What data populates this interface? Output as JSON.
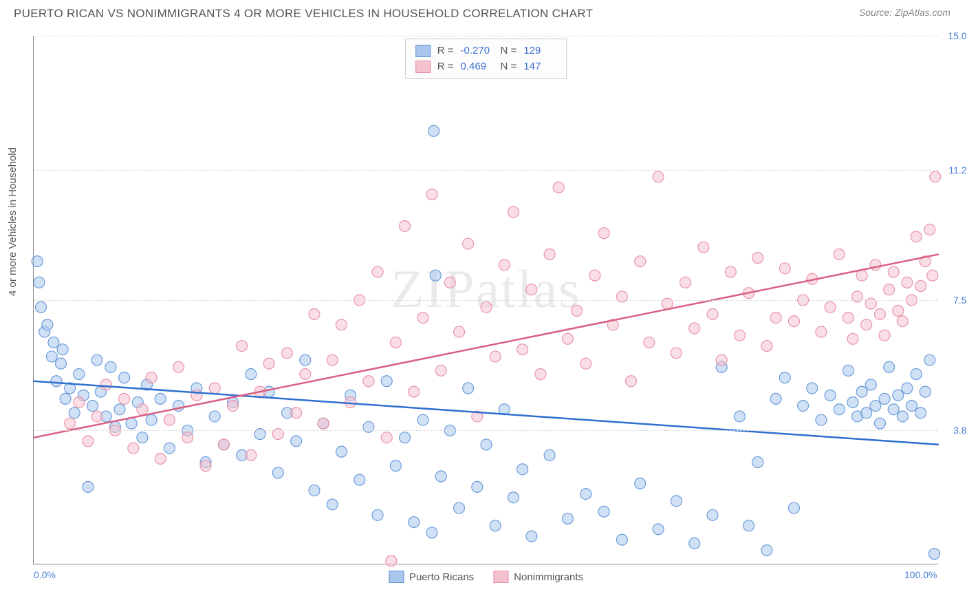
{
  "title": "PUERTO RICAN VS NONIMMIGRANTS 4 OR MORE VEHICLES IN HOUSEHOLD CORRELATION CHART",
  "source": "Source: ZipAtlas.com",
  "watermark": "ZIPatlas",
  "ylabel": "4 or more Vehicles in Household",
  "chart": {
    "type": "scatter",
    "xlim": [
      0,
      100
    ],
    "ylim": [
      0,
      15
    ],
    "xticks": [
      {
        "pos": 0,
        "label": "0.0%"
      },
      {
        "pos": 100,
        "label": "100.0%"
      }
    ],
    "yticks": [
      {
        "pos": 3.8,
        "label": "3.8%"
      },
      {
        "pos": 7.5,
        "label": "7.5%"
      },
      {
        "pos": 11.2,
        "label": "11.2%"
      },
      {
        "pos": 15.0,
        "label": "15.0%"
      }
    ],
    "grid_color": "#dddddd",
    "background_color": "#ffffff",
    "axis_color": "#888888",
    "marker_radius": 8,
    "marker_opacity": 0.55,
    "marker_stroke_opacity": 0.9,
    "line_width": 2.5,
    "series": [
      {
        "name": "Puerto Ricans",
        "color_fill": "#a9c6ec",
        "color_stroke": "#5e93d6",
        "line_color": "#2e6fd0",
        "R": "-0.270",
        "N": "129",
        "trend": {
          "x1": 0,
          "y1": 5.2,
          "x2": 100,
          "y2": 3.4
        },
        "points": [
          [
            0.4,
            8.6
          ],
          [
            0.6,
            8.0
          ],
          [
            0.8,
            7.3
          ],
          [
            1.2,
            6.6
          ],
          [
            1.5,
            6.8
          ],
          [
            2.0,
            5.9
          ],
          [
            2.2,
            6.3
          ],
          [
            2.5,
            5.2
          ],
          [
            3.0,
            5.7
          ],
          [
            3.2,
            6.1
          ],
          [
            3.5,
            4.7
          ],
          [
            4.0,
            5.0
          ],
          [
            4.5,
            4.3
          ],
          [
            5.0,
            5.4
          ],
          [
            5.5,
            4.8
          ],
          [
            6.0,
            2.2
          ],
          [
            6.5,
            4.5
          ],
          [
            7.0,
            5.8
          ],
          [
            7.4,
            4.9
          ],
          [
            8.0,
            4.2
          ],
          [
            8.5,
            5.6
          ],
          [
            9.0,
            3.9
          ],
          [
            9.5,
            4.4
          ],
          [
            10.0,
            5.3
          ],
          [
            10.8,
            4.0
          ],
          [
            11.5,
            4.6
          ],
          [
            12.0,
            3.6
          ],
          [
            12.5,
            5.1
          ],
          [
            13.0,
            4.1
          ],
          [
            14.0,
            4.7
          ],
          [
            15.0,
            3.3
          ],
          [
            16.0,
            4.5
          ],
          [
            17.0,
            3.8
          ],
          [
            18.0,
            5.0
          ],
          [
            19.0,
            2.9
          ],
          [
            20.0,
            4.2
          ],
          [
            21.0,
            3.4
          ],
          [
            22.0,
            4.6
          ],
          [
            23.0,
            3.1
          ],
          [
            24.0,
            5.4
          ],
          [
            25.0,
            3.7
          ],
          [
            26.0,
            4.9
          ],
          [
            27.0,
            2.6
          ],
          [
            28.0,
            4.3
          ],
          [
            29.0,
            3.5
          ],
          [
            30.0,
            5.8
          ],
          [
            31.0,
            2.1
          ],
          [
            32.0,
            4.0
          ],
          [
            33.0,
            1.7
          ],
          [
            34.0,
            3.2
          ],
          [
            35.0,
            4.8
          ],
          [
            36.0,
            2.4
          ],
          [
            37.0,
            3.9
          ],
          [
            38.0,
            1.4
          ],
          [
            39.0,
            5.2
          ],
          [
            40.0,
            2.8
          ],
          [
            41.0,
            3.6
          ],
          [
            42.0,
            1.2
          ],
          [
            43.0,
            4.1
          ],
          [
            44.0,
            0.9
          ],
          [
            44.2,
            12.3
          ],
          [
            44.4,
            8.2
          ],
          [
            45.0,
            2.5
          ],
          [
            46.0,
            3.8
          ],
          [
            47.0,
            1.6
          ],
          [
            48.0,
            5.0
          ],
          [
            49.0,
            2.2
          ],
          [
            50.0,
            3.4
          ],
          [
            51.0,
            1.1
          ],
          [
            52.0,
            4.4
          ],
          [
            53.0,
            1.9
          ],
          [
            54.0,
            2.7
          ],
          [
            55.0,
            0.8
          ],
          [
            57.0,
            3.1
          ],
          [
            59.0,
            1.3
          ],
          [
            61.0,
            2.0
          ],
          [
            63.0,
            1.5
          ],
          [
            65.0,
            0.7
          ],
          [
            67.0,
            2.3
          ],
          [
            69.0,
            1.0
          ],
          [
            71.0,
            1.8
          ],
          [
            73.0,
            0.6
          ],
          [
            75.0,
            1.4
          ],
          [
            76.0,
            5.6
          ],
          [
            78.0,
            4.2
          ],
          [
            79.0,
            1.1
          ],
          [
            80.0,
            2.9
          ],
          [
            81.0,
            0.4
          ],
          [
            82.0,
            4.7
          ],
          [
            83.0,
            5.3
          ],
          [
            84.0,
            1.6
          ],
          [
            85.0,
            4.5
          ],
          [
            86.0,
            5.0
          ],
          [
            87.0,
            4.1
          ],
          [
            88.0,
            4.8
          ],
          [
            89.0,
            4.4
          ],
          [
            90.0,
            5.5
          ],
          [
            90.5,
            4.6
          ],
          [
            91.0,
            4.2
          ],
          [
            91.5,
            4.9
          ],
          [
            92.0,
            4.3
          ],
          [
            92.5,
            5.1
          ],
          [
            93.0,
            4.5
          ],
          [
            93.5,
            4.0
          ],
          [
            94.0,
            4.7
          ],
          [
            94.5,
            5.6
          ],
          [
            95.0,
            4.4
          ],
          [
            95.5,
            4.8
          ],
          [
            96.0,
            4.2
          ],
          [
            96.5,
            5.0
          ],
          [
            97.0,
            4.5
          ],
          [
            97.5,
            5.4
          ],
          [
            98.0,
            4.3
          ],
          [
            98.5,
            4.9
          ],
          [
            99.0,
            5.8
          ],
          [
            99.5,
            0.3
          ]
        ]
      },
      {
        "name": "Nonimmigrants",
        "color_fill": "#f4c2cf",
        "color_stroke": "#e88ba4",
        "line_color": "#d95f82",
        "R": "0.469",
        "N": "147",
        "trend": {
          "x1": 0,
          "y1": 3.6,
          "x2": 100,
          "y2": 8.8
        },
        "points": [
          [
            4.0,
            4.0
          ],
          [
            5.0,
            4.6
          ],
          [
            6.0,
            3.5
          ],
          [
            7.0,
            4.2
          ],
          [
            8.0,
            5.1
          ],
          [
            9.0,
            3.8
          ],
          [
            10.0,
            4.7
          ],
          [
            11.0,
            3.3
          ],
          [
            12.0,
            4.4
          ],
          [
            13.0,
            5.3
          ],
          [
            14.0,
            3.0
          ],
          [
            15.0,
            4.1
          ],
          [
            16.0,
            5.6
          ],
          [
            17.0,
            3.6
          ],
          [
            18.0,
            4.8
          ],
          [
            19.0,
            2.8
          ],
          [
            20.0,
            5.0
          ],
          [
            21.0,
            3.4
          ],
          [
            22.0,
            4.5
          ],
          [
            23.0,
            6.2
          ],
          [
            24.0,
            3.1
          ],
          [
            25.0,
            4.9
          ],
          [
            26.0,
            5.7
          ],
          [
            27.0,
            3.7
          ],
          [
            28.0,
            6.0
          ],
          [
            29.0,
            4.3
          ],
          [
            30.0,
            5.4
          ],
          [
            31.0,
            7.1
          ],
          [
            32.0,
            4.0
          ],
          [
            33.0,
            5.8
          ],
          [
            34.0,
            6.8
          ],
          [
            35.0,
            4.6
          ],
          [
            36.0,
            7.5
          ],
          [
            37.0,
            5.2
          ],
          [
            38.0,
            8.3
          ],
          [
            39.0,
            3.6
          ],
          [
            39.5,
            0.1
          ],
          [
            40.0,
            6.3
          ],
          [
            41.0,
            9.6
          ],
          [
            42.0,
            4.9
          ],
          [
            43.0,
            7.0
          ],
          [
            44.0,
            10.5
          ],
          [
            45.0,
            5.5
          ],
          [
            46.0,
            8.0
          ],
          [
            47.0,
            6.6
          ],
          [
            48.0,
            9.1
          ],
          [
            49.0,
            4.2
          ],
          [
            50.0,
            7.3
          ],
          [
            51.0,
            5.9
          ],
          [
            52.0,
            8.5
          ],
          [
            53.0,
            10.0
          ],
          [
            54.0,
            6.1
          ],
          [
            55.0,
            7.8
          ],
          [
            56.0,
            5.4
          ],
          [
            57.0,
            8.8
          ],
          [
            58.0,
            10.7
          ],
          [
            59.0,
            6.4
          ],
          [
            60.0,
            7.2
          ],
          [
            61.0,
            5.7
          ],
          [
            62.0,
            8.2
          ],
          [
            63.0,
            9.4
          ],
          [
            64.0,
            6.8
          ],
          [
            65.0,
            7.6
          ],
          [
            66.0,
            5.2
          ],
          [
            67.0,
            8.6
          ],
          [
            68.0,
            6.3
          ],
          [
            69.0,
            11.0
          ],
          [
            70.0,
            7.4
          ],
          [
            71.0,
            6.0
          ],
          [
            72.0,
            8.0
          ],
          [
            73.0,
            6.7
          ],
          [
            74.0,
            9.0
          ],
          [
            75.0,
            7.1
          ],
          [
            76.0,
            5.8
          ],
          [
            77.0,
            8.3
          ],
          [
            78.0,
            6.5
          ],
          [
            79.0,
            7.7
          ],
          [
            80.0,
            8.7
          ],
          [
            81.0,
            6.2
          ],
          [
            82.0,
            7.0
          ],
          [
            83.0,
            8.4
          ],
          [
            84.0,
            6.9
          ],
          [
            85.0,
            7.5
          ],
          [
            86.0,
            8.1
          ],
          [
            87.0,
            6.6
          ],
          [
            88.0,
            7.3
          ],
          [
            89.0,
            8.8
          ],
          [
            90.0,
            7.0
          ],
          [
            90.5,
            6.4
          ],
          [
            91.0,
            7.6
          ],
          [
            91.5,
            8.2
          ],
          [
            92.0,
            6.8
          ],
          [
            92.5,
            7.4
          ],
          [
            93.0,
            8.5
          ],
          [
            93.5,
            7.1
          ],
          [
            94.0,
            6.5
          ],
          [
            94.5,
            7.8
          ],
          [
            95.0,
            8.3
          ],
          [
            95.5,
            7.2
          ],
          [
            96.0,
            6.9
          ],
          [
            96.5,
            8.0
          ],
          [
            97.0,
            7.5
          ],
          [
            97.5,
            9.3
          ],
          [
            98.0,
            7.9
          ],
          [
            98.5,
            8.6
          ],
          [
            99.0,
            9.5
          ],
          [
            99.3,
            8.2
          ],
          [
            99.6,
            11.0
          ]
        ]
      }
    ]
  },
  "legend": {
    "series1_label": "Puerto Ricans",
    "series2_label": "Nonimmigrants"
  },
  "stats_labels": {
    "R": "R =",
    "N": "N ="
  }
}
